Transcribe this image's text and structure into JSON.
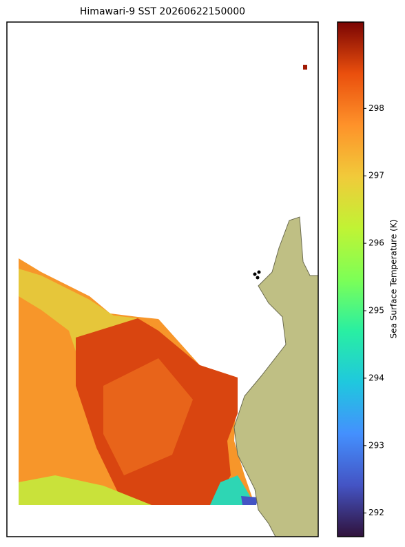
{
  "title": "Himawari-9 SST 20260622150000",
  "colorbar": {
    "label": "Sea Surface Temperature (K)",
    "lim": [
      291.65,
      299.28
    ],
    "ticks": [
      292,
      293,
      294,
      295,
      296,
      297,
      298
    ]
  }
}
